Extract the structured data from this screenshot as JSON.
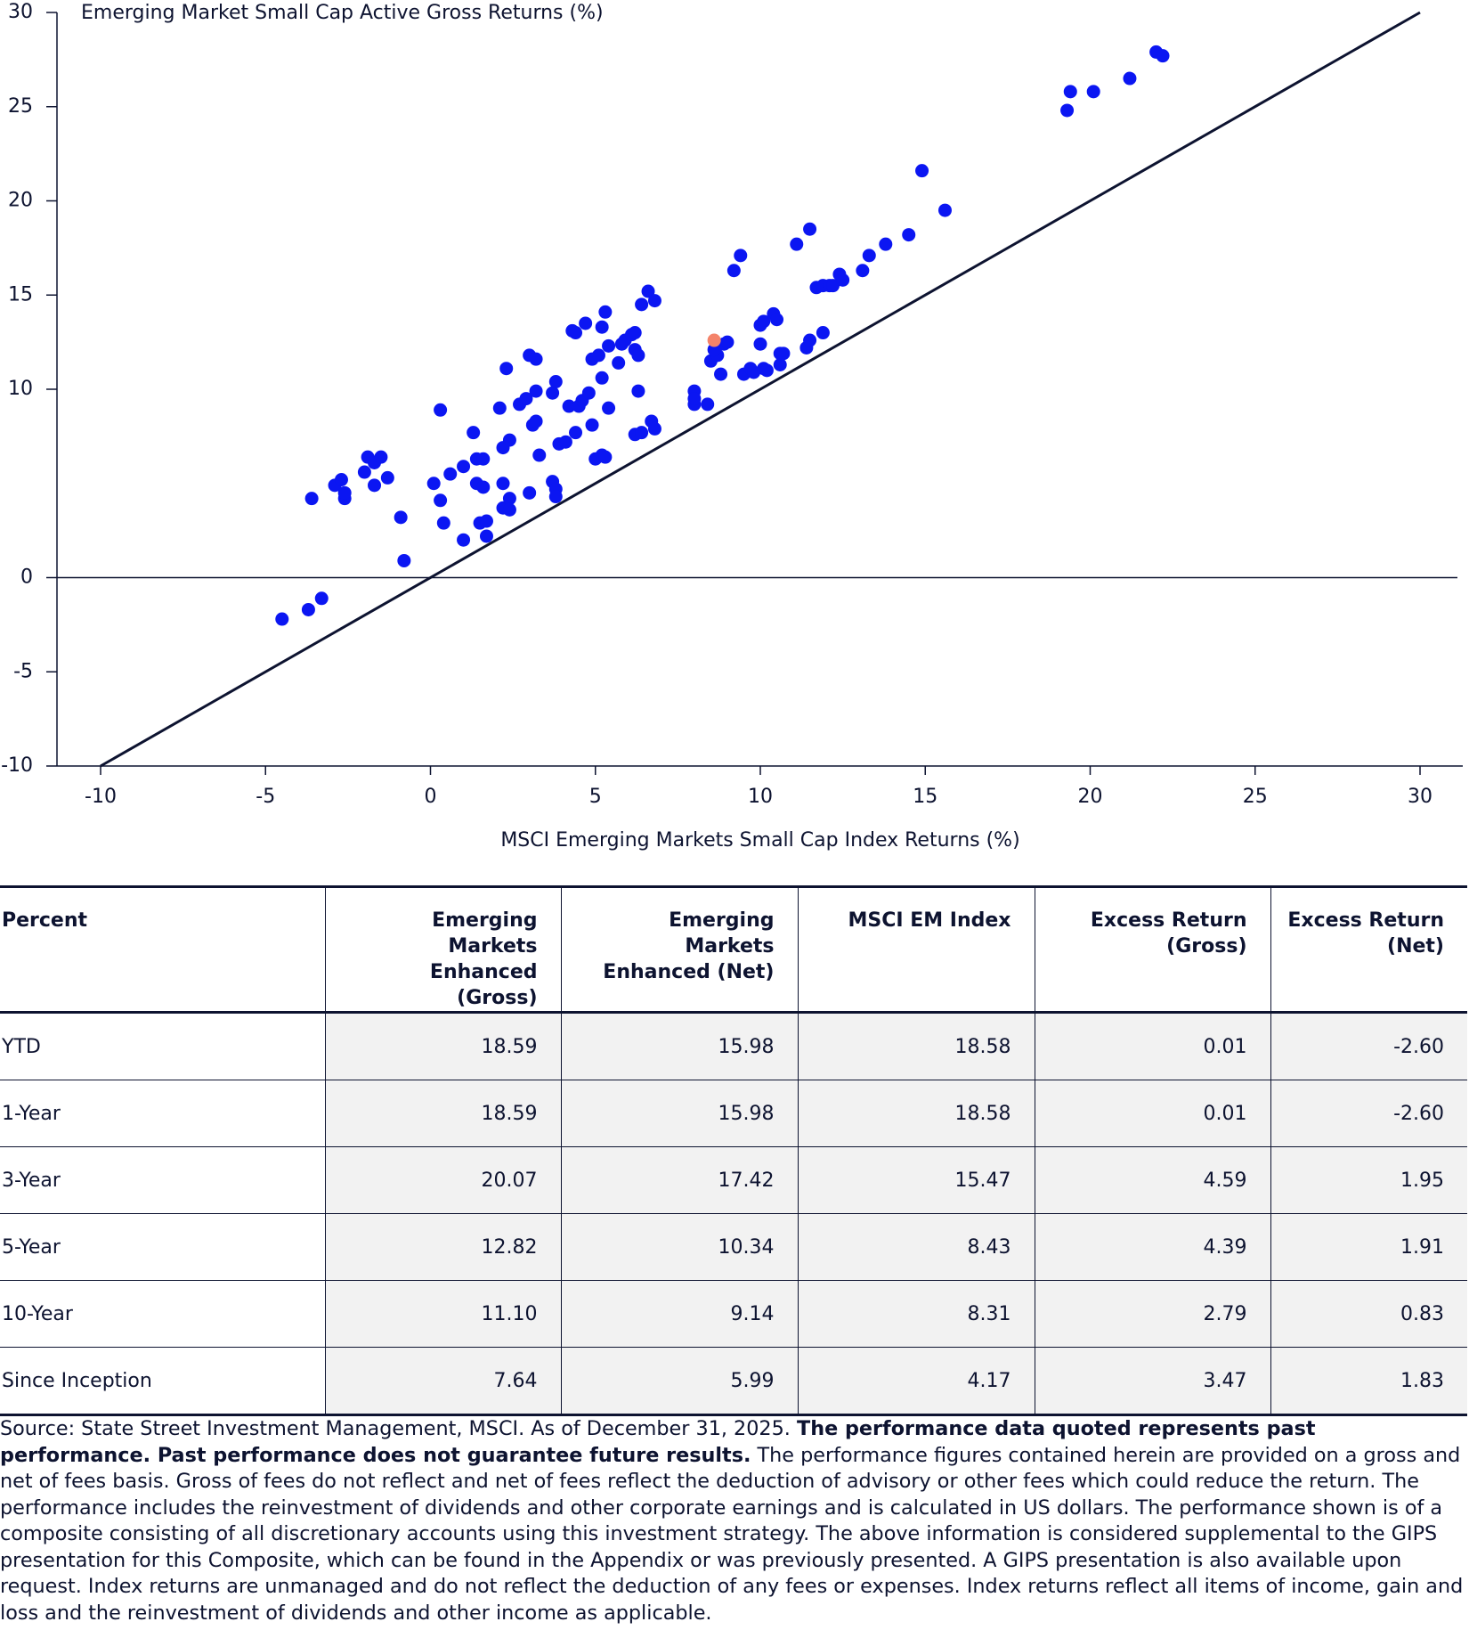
{
  "chart_data": {
    "type": "scatter",
    "title": "Emerging Market Small Cap Active Gross Returns (%)",
    "x_label": "MSCI Emerging Markets Small Cap Index Returns (%)",
    "xlim": [
      -10,
      30
    ],
    "xticks": [
      -10,
      -5,
      0,
      5,
      10,
      15,
      20,
      25,
      30
    ],
    "ylim": [
      -10,
      30
    ],
    "yticks": [
      -10,
      -5,
      0,
      10,
      15,
      20,
      25,
      30
    ],
    "series": [
      {
        "color": "#0b16f2",
        "x": [
          -4.5,
          -3.7,
          -3.3,
          -3.6,
          -2.9,
          -2.7,
          -2.6,
          -2.6,
          -2.0,
          -1.9,
          -1.7,
          -1.5,
          -1.7,
          -1.3,
          -0.9,
          -0.8,
          0.1,
          0.3,
          0.4,
          0.3,
          0.6,
          1.0,
          1.0,
          1.3,
          1.4,
          1.6,
          1.4,
          1.6,
          1.5,
          1.7,
          1.7,
          2.1,
          2.2,
          2.2,
          2.2,
          2.4,
          2.4,
          2.4,
          2.3,
          2.7,
          2.9,
          3.0,
          3.1,
          3.2,
          3.2,
          3.0,
          3.3,
          3.2,
          3.7,
          3.7,
          3.8,
          3.8,
          3.8,
          3.9,
          4.1,
          4.2,
          4.3,
          4.4,
          4.5,
          4.4,
          4.6,
          4.7,
          4.8,
          4.9,
          4.9,
          5.0,
          5.1,
          5.2,
          5.2,
          5.2,
          5.3,
          5.4,
          5.3,
          5.4,
          5.7,
          5.8,
          5.9,
          6.1,
          6.2,
          6.2,
          6.3,
          6.3,
          6.2,
          6.4,
          6.4,
          6.6,
          6.7,
          6.8,
          6.8,
          8.0,
          8.0,
          8.4,
          8.0,
          8.5,
          8.7,
          8.6,
          8.9,
          9.0,
          8.8,
          9.2,
          9.4,
          9.5,
          9.7,
          9.8,
          10.0,
          10.0,
          10.1,
          10.1,
          10.2,
          10.4,
          10.5,
          10.6,
          10.6,
          10.7,
          11.1,
          11.4,
          11.5,
          11.5,
          11.7,
          11.9,
          12.1,
          12.2,
          12.4,
          12.5,
          13.1,
          13.3,
          13.8,
          14.5,
          14.9,
          15.6,
          19.3,
          19.4,
          20.1,
          21.2,
          22.0,
          22.2,
          11.9
        ],
        "values": [
          -2.2,
          -1.7,
          -1.1,
          4.2,
          4.9,
          5.2,
          4.2,
          4.5,
          5.6,
          6.4,
          6.1,
          6.4,
          4.9,
          5.3,
          3.2,
          0.9,
          5.0,
          4.1,
          2.9,
          8.9,
          5.5,
          5.9,
          2.0,
          7.7,
          6.3,
          6.3,
          5.0,
          4.8,
          2.9,
          3.0,
          2.2,
          9.0,
          6.9,
          5.0,
          3.7,
          4.2,
          3.6,
          7.3,
          11.1,
          9.2,
          9.5,
          11.8,
          8.1,
          8.3,
          11.6,
          4.5,
          6.5,
          9.9,
          9.8,
          5.1,
          4.7,
          10.4,
          4.3,
          7.1,
          7.2,
          9.1,
          13.1,
          13.0,
          9.1,
          7.7,
          9.4,
          13.5,
          9.8,
          8.1,
          11.6,
          6.3,
          11.8,
          13.3,
          10.6,
          6.5,
          6.4,
          12.3,
          14.1,
          9.0,
          11.4,
          12.4,
          12.6,
          12.9,
          12.1,
          13.0,
          11.8,
          9.9,
          7.6,
          14.5,
          7.7,
          15.2,
          8.3,
          14.7,
          7.9,
          9.9,
          9.2,
          9.2,
          9.5,
          11.5,
          11.8,
          12.1,
          12.4,
          12.5,
          10.8,
          16.3,
          17.1,
          10.8,
          11.1,
          10.9,
          13.4,
          12.4,
          11.1,
          13.6,
          11.0,
          14.0,
          13.7,
          11.3,
          11.9,
          11.9,
          17.7,
          12.2,
          18.5,
          12.6,
          15.4,
          15.5,
          15.5,
          15.5,
          16.1,
          15.8,
          16.3,
          17.1,
          17.7,
          18.2,
          21.6,
          19.5,
          24.8,
          25.8,
          25.8,
          26.5,
          27.9,
          27.7,
          13.0
        ]
      },
      {
        "color": "#f4836a",
        "x": [
          8.6
        ],
        "values": [
          12.6
        ]
      }
    ]
  },
  "table": {
    "columns": [
      "Percent",
      "Emerging Markets Enhanced (Gross)",
      "Emerging Markets Enhanced (Net)",
      "MSCI EM Index",
      "Excess Return (Gross)",
      "Excess Return (Net)"
    ],
    "rows": [
      [
        "YTD",
        "18.59",
        "15.98",
        "18.58",
        "0.01",
        "-2.60"
      ],
      [
        "1-Year",
        "18.59",
        "15.98",
        "18.58",
        "0.01",
        "-2.60"
      ],
      [
        "3-Year",
        "20.07",
        "17.42",
        "15.47",
        "4.59",
        "1.95"
      ],
      [
        "5-Year",
        "12.82",
        "10.34",
        "8.43",
        "4.39",
        "1.91"
      ],
      [
        "10-Year",
        "11.10",
        "9.14",
        "8.31",
        "2.79",
        "0.83"
      ],
      [
        "Since Inception",
        "7.64",
        "5.99",
        "4.17",
        "3.47",
        "1.83"
      ]
    ]
  },
  "footnote": {
    "source": "Source: State Street Investment Management, MSCI. As of December 31, 2025.",
    "emphasis": "The performance data quoted represents past performance. Past performance does not guarantee future results.",
    "body": "The performance figures contained herein are provided on a gross and net of fees basis. Gross of fees do not reflect and net of fees reflect the deduction of advisory or other fees which could reduce the return. The performance includes the reinvestment of dividends and other corporate earnings and is calculated in US dollars. The performance shown is of a composite consisting of all discretionary accounts using this investment strategy. The above information is considered supplemental to the GIPS presentation for this Composite, which can be found in the Appendix or was previously presented. A GIPS presentation is also available upon request. Index returns are unmanaged and do not reflect the deduction of any fees or expenses. Index returns reflect all items of income, gain and loss and the reinvestment of dividends and other income as applicable."
  }
}
